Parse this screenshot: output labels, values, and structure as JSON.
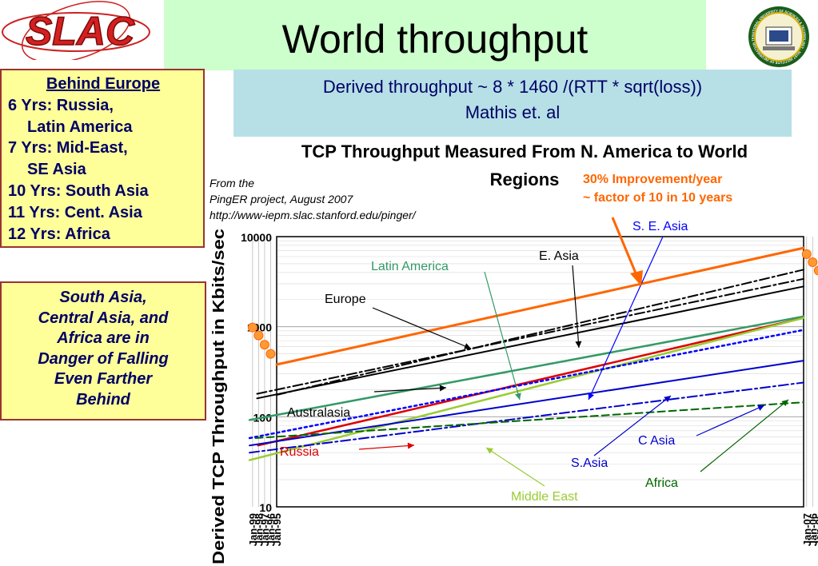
{
  "slide": {
    "title": "World throughput",
    "logo_left_text": "SLAC",
    "logo_right_text": "NATIONAL UNIVERSITY OF SCIENCES & TECHNOLOGY · NUST INSTITUTE OF INFORMATION TECHNOLOGY · PAKISTAN",
    "formula_line1": "Derived throughput ~ 8 * 1460 /(RTT * sqrt(loss))",
    "formula_line2": "Mathis et. al",
    "behind_box": {
      "heading": "Behind Europe",
      "lines": [
        "6 Yrs: Russia,",
        "Latin America",
        "7 Yrs: Mid-East,",
        "SE Asia",
        "10 Yrs: South Asia",
        "11 Yrs: Cent. Asia",
        "12 Yrs: Africa"
      ]
    },
    "danger_box": {
      "lines": [
        "South Asia,",
        "Central Asia, and",
        "Africa are in",
        "Danger of Falling",
        "Even Farther",
        "Behind"
      ]
    },
    "colors": {
      "title_band": "#ccffcc",
      "formula_box": "#b7e0e6",
      "note_box": "#ffff99",
      "note_border": "#993333",
      "note_text": "#000066"
    }
  },
  "chart_data": {
    "type": "line",
    "title": "TCP Throughput Measured From N. America to World Regions",
    "ylabel": "Derived TCP Throughput in Kbits/sec",
    "xlabel": "",
    "y_scale": "log",
    "ylim": [
      10,
      10000
    ],
    "yticks": [
      "10",
      "100",
      "1000",
      "10000"
    ],
    "xticks": [
      "Jan-95",
      "Jan-96",
      "Jan-97",
      "Jan-98",
      "Jan-99",
      "Jan-00",
      "Jan-01",
      "Jan-02",
      "Jan-03",
      "Jan-04",
      "Jan-05",
      "Jan-06",
      "Jan-07"
    ],
    "xlim": [
      "Jan-95",
      "Jul-07"
    ],
    "grid": true,
    "source_note": [
      "From the",
      "PingER project, August 2007",
      "http://www-iepm.slac.stanford.edu/pinger/"
    ],
    "trend_note": [
      "30% Improvement/year",
      "~ factor of 10 in 10 years"
    ],
    "trend_points": [
      {
        "x": "Jan-96",
        "y": 500
      },
      {
        "x": "Jan-97",
        "y": 630
      },
      {
        "x": "Jan-98",
        "y": 800
      },
      {
        "x": "Jan-99",
        "y": 980
      },
      {
        "x": "Jan-00",
        "y": 1250
      },
      {
        "x": "Jan-01",
        "y": 1550
      },
      {
        "x": "Jan-02",
        "y": 1950
      },
      {
        "x": "Jan-03",
        "y": 2700
      },
      {
        "x": "Jan-04",
        "y": 3400
      },
      {
        "x": "Jan-05",
        "y": 4200
      },
      {
        "x": "Jan-06",
        "y": 5200
      },
      {
        "x": "Jan-07",
        "y": 6400
      }
    ],
    "series": [
      {
        "name": "30% Improvement/year",
        "color": "#ff6600",
        "dash": "solid",
        "width": 3,
        "points": [
          {
            "x": "Jan-95",
            "y": 380
          },
          {
            "x": "Jul-07",
            "y": 7500
          }
        ]
      },
      {
        "name": "E. Asia",
        "color": "#000000",
        "dash": "dashdot",
        "width": 2,
        "points": [
          {
            "x": "Jan-95",
            "y": 175
          },
          {
            "x": "Jul-07",
            "y": 4300
          }
        ]
      },
      {
        "name": "Europe",
        "color": "#000000",
        "dash": "dashdot",
        "width": 2,
        "points": [
          {
            "x": "Apr-98",
            "y": 180
          },
          {
            "x": "Jul-07",
            "y": 3400
          }
        ]
      },
      {
        "name": "Australasia",
        "color": "#000000",
        "dash": "solid",
        "width": 2,
        "points": [
          {
            "x": "Apr-98",
            "y": 160
          },
          {
            "x": "Jul-07",
            "y": 2800
          }
        ]
      },
      {
        "name": "Latin America",
        "color": "#339966",
        "dash": "solid",
        "width": 2.5,
        "points": [
          {
            "x": "Jul-99",
            "y": 92
          },
          {
            "x": "Jul-07",
            "y": 1300
          }
        ]
      },
      {
        "name": "Russia",
        "color": "#dd0000",
        "dash": "solid",
        "width": 2.5,
        "points": [
          {
            "x": "Feb-98",
            "y": 48
          },
          {
            "x": "Jul-07",
            "y": 1250
          }
        ]
      },
      {
        "name": "Middle East",
        "color": "#99cc33",
        "dash": "solid",
        "width": 2.5,
        "points": [
          {
            "x": "Jul-99",
            "y": 33
          },
          {
            "x": "Jul-07",
            "y": 1250
          }
        ]
      },
      {
        "name": "S. E. Asia",
        "color": "#0000ff",
        "dash": "dotted",
        "width": 2.5,
        "points": [
          {
            "x": "Jul-99",
            "y": 58
          },
          {
            "x": "Jul-07",
            "y": 920
          }
        ]
      },
      {
        "name": "C Asia",
        "color": "#0000cc",
        "dash": "solid",
        "width": 2,
        "points": [
          {
            "x": "Jul-99",
            "y": 48
          },
          {
            "x": "Jul-07",
            "y": 420
          }
        ]
      },
      {
        "name": "S.Asia",
        "color": "#0000cc",
        "dash": "dashdot",
        "width": 2,
        "points": [
          {
            "x": "Jul-99",
            "y": 40
          },
          {
            "x": "Jul-07",
            "y": 240
          }
        ]
      },
      {
        "name": "Africa",
        "color": "#006600",
        "dash": "dashed",
        "width": 2,
        "points": [
          {
            "x": "Jul-98",
            "y": 58
          },
          {
            "x": "Jul-07",
            "y": 145
          }
        ]
      }
    ],
    "labels": [
      {
        "text": "Latin America",
        "color": "#339966"
      },
      {
        "text": "E. Asia",
        "color": "#000000"
      },
      {
        "text": "S. E. Asia",
        "color": "#0000ff"
      },
      {
        "text": "Europe",
        "color": "#000000"
      },
      {
        "text": "Australasia",
        "color": "#000000"
      },
      {
        "text": "Russia",
        "color": "#dd0000"
      },
      {
        "text": "C Asia",
        "color": "#0000cc"
      },
      {
        "text": "S.Asia",
        "color": "#0000cc"
      },
      {
        "text": "Africa",
        "color": "#006600"
      },
      {
        "text": "Middle East",
        "color": "#99cc33"
      }
    ]
  }
}
